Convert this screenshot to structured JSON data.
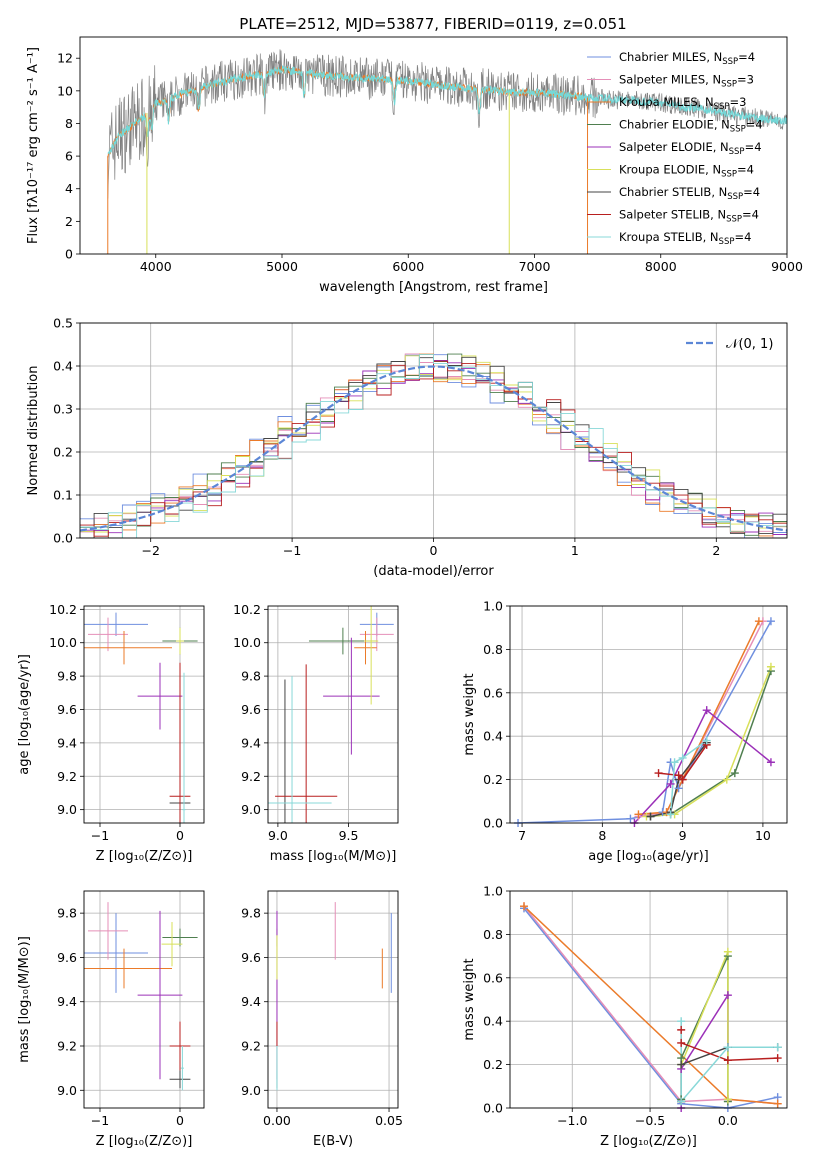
{
  "page": {
    "title": "PLATE=2512, MJD=53877, FIBERID=0119, z=0.051"
  },
  "colors": {
    "Chabrier MILES": "#6f8fdf",
    "Salpeter MILES": "#e58fb8",
    "Kroupa MILES": "#eb7b2a",
    "Chabrier ELODIE": "#4f7f4f",
    "Salpeter ELODIE": "#9b30b8",
    "Kroupa ELODIE": "#d8e05a",
    "Chabrier STELIB": "#444444",
    "Salpeter STELIB": "#b81f1f",
    "Kroupa STELIB": "#88d8d8",
    "observed": "#808080",
    "model": "#74d8d8",
    "gaussian": "#5b86d6"
  },
  "chart_data": [
    {
      "id": "spectrum",
      "type": "line",
      "title": "PLATE=2512, MJD=53877, FIBERID=0119, z=0.051",
      "xlabel": "wavelength [Angstrom, rest frame]",
      "ylabel": "Flux [fλ10⁻¹⁷ erg cm⁻² s⁻¹ A⁻¹]",
      "xlim": [
        3400,
        9000
      ],
      "ylim": [
        0,
        13.3
      ],
      "xticks": [
        4000,
        5000,
        6000,
        7000,
        8000,
        9000
      ],
      "yticks": [
        0,
        2,
        4,
        6,
        8,
        10,
        12
      ],
      "grid": false,
      "legend": "right",
      "legend_entries": [
        {
          "label": "Chabrier MILES, N",
          "sub": "SSP",
          "tail": "=4"
        },
        {
          "label": "Salpeter MILES, N",
          "sub": "SSP",
          "tail": "=3"
        },
        {
          "label": "Kroupa MILES, N",
          "sub": "SSP",
          "tail": "=3"
        },
        {
          "label": "Chabrier ELODIE, N",
          "sub": "SSP",
          "tail": "=4"
        },
        {
          "label": "Salpeter ELODIE, N",
          "sub": "SSP",
          "tail": "=4"
        },
        {
          "label": "Kroupa ELODIE, N",
          "sub": "SSP",
          "tail": "=4"
        },
        {
          "label": "Chabrier STELIB, N",
          "sub": "SSP",
          "tail": "=4"
        },
        {
          "label": "Salpeter STELIB, N",
          "sub": "SSP",
          "tail": "=4"
        },
        {
          "label": "Kroupa STELIB, N",
          "sub": "SSP",
          "tail": "=4"
        }
      ],
      "continuum": {
        "x": [
          3620,
          3700,
          3800,
          3900,
          4000,
          4200,
          4400,
          4600,
          4800,
          5000,
          5200,
          5400,
          5600,
          5800,
          6000,
          6200,
          6400,
          6600,
          6800,
          7000,
          7200,
          7400,
          7600,
          7800,
          8000,
          8200,
          8400,
          8600,
          8800,
          9000
        ],
        "y": [
          6.0,
          7.2,
          7.8,
          8.4,
          9.2,
          9.8,
          10.3,
          10.7,
          11.0,
          11.3,
          11.1,
          10.9,
          10.8,
          10.7,
          10.6,
          10.4,
          10.2,
          10.1,
          9.9,
          9.9,
          9.8,
          9.6,
          9.5,
          9.4,
          9.3,
          9.0,
          8.8,
          8.5,
          8.3,
          8.1
        ]
      },
      "absorption_lines": [
        3934,
        3969,
        4102,
        4340,
        4861,
        5175,
        5890,
        6563
      ]
    },
    {
      "id": "residuals",
      "type": "bar",
      "xlabel": "(data-model)/error",
      "ylabel": "Normed distribution",
      "xlim": [
        -2.5,
        2.5
      ],
      "ylim": [
        0,
        0.5
      ],
      "xticks": [
        -2,
        -1,
        0,
        1,
        2
      ],
      "yticks": [
        0.0,
        0.1,
        0.2,
        0.3,
        0.4,
        0.5
      ],
      "grid": true,
      "legend": "top-right",
      "legend_label": "𝒩(0, 1)",
      "bin_width": 0.1
    },
    {
      "id": "age-vs-z",
      "type": "scatter",
      "xlabel": "Z [log₁₀(Z/Z⊙)]",
      "ylabel": "age  [log₁₀(age/yr)]",
      "xlim": [
        -1.2,
        0.3
      ],
      "ylim": [
        8.92,
        10.22
      ],
      "xticks": [
        -1,
        0
      ],
      "yticks": [
        9.0,
        9.2,
        9.4,
        9.6,
        9.8,
        10.0,
        10.2
      ],
      "grid": true,
      "points": [
        {
          "series": "Chabrier MILES",
          "x": -0.8,
          "y": 10.11,
          "xerr": 0.4,
          "yerr": 0.07
        },
        {
          "series": "Salpeter MILES",
          "x": -0.9,
          "y": 10.05,
          "xerr": 0.25,
          "yerr": 0.1
        },
        {
          "series": "Kroupa MILES",
          "x": -0.7,
          "y": 9.97,
          "xerr": 0.6,
          "yerr": 0.1
        },
        {
          "series": "Chabrier ELODIE",
          "x": 0.0,
          "y": 10.01,
          "xerr": 0.22,
          "yerr": 0.08
        },
        {
          "series": "Salpeter ELODIE",
          "x": -0.25,
          "y": 9.68,
          "xerr": 0.28,
          "yerr": 0.2
        },
        {
          "series": "Kroupa ELODIE",
          "x": 0.0,
          "y": 10.01,
          "xerr": 0.05,
          "yerr": 0.08
        },
        {
          "series": "Chabrier STELIB",
          "x": 0.0,
          "y": 9.04,
          "xerr": 0.13,
          "yerr": 0.06
        },
        {
          "series": "Salpeter STELIB",
          "x": 0.0,
          "y": 9.08,
          "xerr": 0.13,
          "yerr": 0.8
        },
        {
          "series": "Kroupa STELIB",
          "x": 0.05,
          "y": 9.0,
          "xerr": 0.02,
          "yerr": 0.82
        }
      ]
    },
    {
      "id": "age-vs-mass",
      "type": "scatter",
      "xlabel": "mass [log₁₀(M/M⊙)]",
      "xlim": [
        8.93,
        9.85
      ],
      "ylim": [
        8.92,
        10.22
      ],
      "xticks": [
        9.0,
        9.5
      ],
      "yticks": [
        9.0,
        9.2,
        9.4,
        9.6,
        9.8,
        10.0,
        10.2
      ],
      "grid": true,
      "points": [
        {
          "series": "Chabrier MILES",
          "x": 9.7,
          "y": 10.11,
          "xerr": 0.12,
          "yerr": 0.07
        },
        {
          "series": "Salpeter MILES",
          "x": 9.7,
          "y": 10.05,
          "xerr": 0.12,
          "yerr": 0.1
        },
        {
          "series": "Kroupa MILES",
          "x": 9.62,
          "y": 9.97,
          "xerr": 0.08,
          "yerr": 0.1
        },
        {
          "series": "Chabrier ELODIE",
          "x": 9.46,
          "y": 10.01,
          "xerr": 0.24,
          "yerr": 0.08
        },
        {
          "series": "Salpeter ELODIE",
          "x": 9.52,
          "y": 9.68,
          "xerr": 0.2,
          "yerr": 0.35
        },
        {
          "series": "Kroupa ELODIE",
          "x": 9.66,
          "y": 10.01,
          "xerr": 0.05,
          "yerr": 0.38
        },
        {
          "series": "Chabrier STELIB",
          "x": 9.05,
          "y": 9.04,
          "xerr": 0.18,
          "yerr": 0.74
        },
        {
          "series": "Salpeter STELIB",
          "x": 9.2,
          "y": 9.08,
          "xerr": 0.22,
          "yerr": 0.79
        },
        {
          "series": "Kroupa STELIB",
          "x": 9.1,
          "y": 9.04,
          "xerr": 0.28,
          "yerr": 0.76
        }
      ]
    },
    {
      "id": "weight-vs-age",
      "type": "line",
      "xlabel": "age  [log₁₀(age/yr)]",
      "ylabel": "mass weight",
      "xlim": [
        6.85,
        10.3
      ],
      "ylim": [
        0,
        1.0
      ],
      "xticks": [
        7,
        8,
        9,
        10
      ],
      "yticks": [
        0.0,
        0.2,
        0.4,
        0.6,
        0.8,
        1.0
      ],
      "grid": true,
      "series": [
        {
          "name": "Chabrier MILES",
          "x": [
            6.95,
            8.35,
            8.75,
            8.85,
            8.95,
            10.1
          ],
          "y": [
            0.0,
            0.02,
            0.05,
            0.28,
            0.16,
            0.93
          ]
        },
        {
          "name": "Salpeter MILES",
          "x": [
            8.45,
            8.8,
            9.0,
            10.0
          ],
          "y": [
            0.03,
            0.05,
            0.2,
            0.93
          ]
        },
        {
          "name": "Kroupa MILES",
          "x": [
            8.45,
            8.8,
            9.0,
            9.95
          ],
          "y": [
            0.04,
            0.05,
            0.2,
            0.93
          ]
        },
        {
          "name": "Chabrier ELODIE",
          "x": [
            8.6,
            8.85,
            9.65,
            10.1
          ],
          "y": [
            0.03,
            0.04,
            0.23,
            0.7
          ]
        },
        {
          "name": "Salpeter ELODIE",
          "x": [
            8.4,
            8.85,
            9.3,
            10.1
          ],
          "y": [
            0.0,
            0.18,
            0.52,
            0.28
          ]
        },
        {
          "name": "Kroupa ELODIE",
          "x": [
            8.55,
            8.9,
            9.55,
            10.1
          ],
          "y": [
            0.03,
            0.04,
            0.2,
            0.72
          ]
        },
        {
          "name": "Chabrier STELIB",
          "x": [
            8.6,
            8.85,
            8.95,
            9.3
          ],
          "y": [
            0.03,
            0.05,
            0.2,
            0.37
          ]
        },
        {
          "name": "Salpeter STELIB",
          "x": [
            8.7,
            8.95,
            9.0,
            9.3
          ],
          "y": [
            0.23,
            0.22,
            0.2,
            0.36
          ]
        },
        {
          "name": "Kroupa STELIB",
          "x": [
            8.85,
            8.9,
            9.0,
            9.3
          ],
          "y": [
            0.04,
            0.28,
            0.3,
            0.38
          ]
        }
      ]
    },
    {
      "id": "mass-vs-z",
      "type": "scatter",
      "xlabel": "Z [log₁₀(Z/Z⊙)]",
      "ylabel": "mass [log₁₀(M/M⊙)]",
      "xlim": [
        -1.2,
        0.3
      ],
      "ylim": [
        8.92,
        9.9
      ],
      "xticks": [
        -1,
        0
      ],
      "yticks": [
        9.0,
        9.2,
        9.4,
        9.6,
        9.8
      ],
      "grid": true,
      "points": [
        {
          "series": "Chabrier MILES",
          "x": -0.8,
          "y": 9.62,
          "xerr": 0.4,
          "yerr": 0.18
        },
        {
          "series": "Salpeter MILES",
          "x": -0.9,
          "y": 9.72,
          "xerr": 0.25,
          "yerr": 0.13
        },
        {
          "series": "Kroupa MILES",
          "x": -0.7,
          "y": 9.55,
          "xerr": 0.6,
          "yerr": 0.09
        },
        {
          "series": "Chabrier ELODIE",
          "x": 0.0,
          "y": 9.69,
          "xerr": 0.22,
          "yerr": 0.04
        },
        {
          "series": "Salpeter ELODIE",
          "x": -0.25,
          "y": 9.43,
          "xerr": 0.28,
          "yerr": 0.38
        },
        {
          "series": "Kroupa ELODIE",
          "x": -0.1,
          "y": 9.66,
          "xerr": 0.13,
          "yerr": 0.1
        },
        {
          "series": "Chabrier STELIB",
          "x": 0.0,
          "y": 9.05,
          "xerr": 0.13,
          "yerr": 0.04
        },
        {
          "series": "Salpeter STELIB",
          "x": 0.0,
          "y": 9.2,
          "xerr": 0.13,
          "yerr": 0.11
        },
        {
          "series": "Kroupa STELIB",
          "x": 0.03,
          "y": 9.1,
          "xerr": 0.02,
          "yerr": 0.1
        }
      ]
    },
    {
      "id": "mass-vs-ebv",
      "type": "scatter",
      "xlabel": "E(B-V)",
      "xlim": [
        -0.004,
        0.054
      ],
      "ylim": [
        8.92,
        9.9
      ],
      "xticks": [
        0.0,
        0.05
      ],
      "yticks": [
        9.0,
        9.2,
        9.4,
        9.6,
        9.8
      ],
      "grid": true,
      "points": [
        {
          "series": "Chabrier MILES",
          "x": 0.051,
          "y": 9.62,
          "yerr": 0.18
        },
        {
          "series": "Salpeter MILES",
          "x": 0.026,
          "y": 9.72,
          "yerr": 0.13
        },
        {
          "series": "Kroupa MILES",
          "x": 0.047,
          "y": 9.55,
          "yerr": 0.09
        },
        {
          "series": "Chabrier ELODIE",
          "x": 0.0,
          "y": 9.69,
          "yerr": 0.04
        },
        {
          "series": "Salpeter ELODIE",
          "x": 0.0,
          "y": 9.43,
          "yerr": 0.38
        },
        {
          "series": "Kroupa ELODIE",
          "x": 0.0,
          "y": 9.6,
          "yerr": 0.1
        },
        {
          "series": "Chabrier STELIB",
          "x": 0.0,
          "y": 9.05,
          "yerr": 0.04
        },
        {
          "series": "Salpeter STELIB",
          "x": 0.0,
          "y": 9.2,
          "yerr": 0.11
        },
        {
          "series": "Kroupa STELIB",
          "x": 0.0,
          "y": 9.1,
          "yerr": 0.1
        }
      ]
    },
    {
      "id": "weight-vs-z",
      "type": "line",
      "xlabel": "Z [log₁₀(Z/Z⊙)]",
      "ylabel": "mass weight",
      "xlim": [
        -1.4,
        0.38
      ],
      "ylim": [
        0,
        1.0
      ],
      "xticks": [
        -1.0,
        -0.5,
        0.0
      ],
      "yticks": [
        0.0,
        0.2,
        0.4,
        0.6,
        0.8,
        1.0
      ],
      "grid": true,
      "series": [
        {
          "name": "Chabrier MILES",
          "x": [
            -1.31,
            -0.3,
            0.0,
            0.32
          ],
          "y": [
            0.92,
            0.02,
            0.0,
            0.05
          ]
        },
        {
          "name": "Salpeter MILES",
          "x": [
            -1.31,
            -0.3,
            0.0,
            0.32
          ],
          "y": [
            0.93,
            0.03,
            0.04,
            0.02
          ]
        },
        {
          "name": "Kroupa MILES",
          "x": [
            -1.31,
            0.0,
            0.32
          ],
          "y": [
            0.93,
            0.04,
            0.02
          ]
        },
        {
          "name": "Chabrier ELODIE",
          "x": [
            -0.3,
            -0.3,
            0.0,
            0.0
          ],
          "y": [
            0.04,
            0.23,
            0.7,
            0.03
          ]
        },
        {
          "name": "Salpeter ELODIE",
          "x": [
            -0.3,
            -0.3,
            0.0,
            0.0
          ],
          "y": [
            0.0,
            0.18,
            0.52,
            0.28
          ]
        },
        {
          "name": "Kroupa ELODIE",
          "x": [
            -0.3,
            -0.3,
            0.0,
            0.0
          ],
          "y": [
            0.03,
            0.2,
            0.72,
            0.04
          ]
        },
        {
          "name": "Chabrier STELIB",
          "x": [
            -0.3,
            -0.3,
            0.0,
            0.32
          ],
          "y": [
            0.03,
            0.2,
            0.28,
            0.28
          ]
        },
        {
          "name": "Salpeter STELIB",
          "x": [
            -0.3,
            -0.3,
            0.0,
            0.32
          ],
          "y": [
            0.36,
            0.3,
            0.22,
            0.23
          ]
        },
        {
          "name": "Kroupa STELIB",
          "x": [
            -0.3,
            -0.3,
            0.0,
            0.32
          ],
          "y": [
            0.4,
            0.03,
            0.28,
            0.28
          ]
        }
      ]
    }
  ]
}
